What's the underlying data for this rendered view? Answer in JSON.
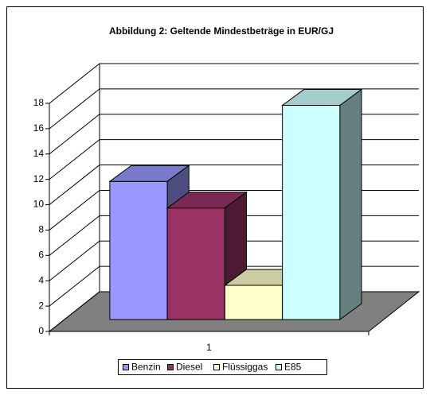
{
  "chart_data": {
    "type": "bar",
    "title": "Abbildung 2: Geltende Mindestbeträge in EUR/GJ",
    "categories": [
      "1"
    ],
    "series": [
      {
        "name": "Benzin",
        "color": "#9999ff",
        "values": [
          10.9
        ]
      },
      {
        "name": "Diesel",
        "color": "#993366",
        "values": [
          8.8
        ]
      },
      {
        "name": "Flüssiggas",
        "color": "#ffffcc",
        "values": [
          2.7
        ]
      },
      {
        "name": "E85",
        "color": "#ccffff",
        "values": [
          16.9
        ]
      }
    ],
    "ylim": [
      0,
      18
    ],
    "yticks": [
      0,
      2,
      4,
      6,
      8,
      10,
      12,
      14,
      16,
      18
    ],
    "grid": true,
    "legend": "bottom"
  }
}
